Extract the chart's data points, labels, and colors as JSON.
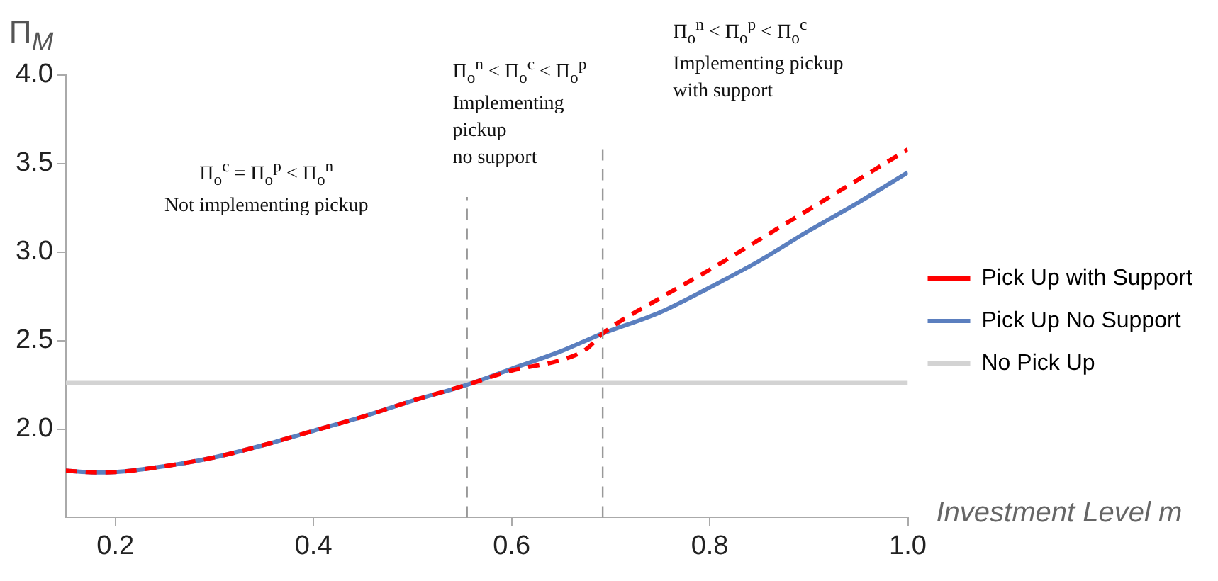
{
  "chart_data": {
    "type": "line",
    "ylabel": "Π$_{M}$",
    "xlabel": "Investment Level m",
    "annotations": [
      "Π$_{o}$$^{c}$ = Π$_{o}$$^{p}$ < Π$_{o}$$^{n}$\nNot implementing pickup",
      "Π$_{o}$$^{n}$ < Π$_{o}$$^{c}$ < Π$_{o}$$^{p}$\nImplementing\npickup\nno support",
      "Π$_{o}$$^{n}$ < Π$_{o}$$^{p}$ < Π$_{o}$$^{c}$\nImplementing pickup\nwith support"
    ],
    "x": [
      0.15,
      0.18,
      0.2,
      0.25,
      0.3,
      0.35,
      0.4,
      0.45,
      0.5,
      0.555,
      0.6,
      0.65,
      0.675,
      0.692,
      0.75,
      0.8,
      0.85,
      0.9,
      0.95,
      1.0
    ],
    "series": [
      {
        "name": "Pick Up with Support",
        "color": "#ff0000",
        "line_style": "dashed",
        "values": [
          1.765,
          1.755,
          1.757,
          1.79,
          1.84,
          1.91,
          1.99,
          2.07,
          2.16,
          2.25,
          2.33,
          2.39,
          2.45,
          2.54,
          2.74,
          2.9,
          3.07,
          3.24,
          3.41,
          3.58
        ]
      },
      {
        "name": "Pick Up No Support",
        "color": "#5b7fbf",
        "line_style": "solid",
        "values": [
          1.765,
          1.755,
          1.757,
          1.79,
          1.84,
          1.91,
          1.99,
          2.07,
          2.16,
          2.25,
          2.34,
          2.44,
          2.5,
          2.54,
          2.66,
          2.8,
          2.95,
          3.12,
          3.28,
          3.45
        ]
      },
      {
        "name": "No Pick Up",
        "color": "#d3d3d3",
        "line_style": "solid",
        "x": [
          0.15,
          1.0
        ],
        "values": [
          2.26,
          2.26
        ]
      }
    ],
    "ref_lines": [
      {
        "axis": "x",
        "value": 0.555,
        "color": "#999999",
        "line_style": "dashed"
      },
      {
        "axis": "x",
        "value": 0.692,
        "color": "#999999",
        "line_style": "dashed"
      }
    ],
    "xlim": [
      0.15,
      1.0
    ],
    "ylim": [
      1.5,
      4.0
    ],
    "xticks": [
      0.2,
      0.4,
      0.6,
      0.8,
      {
        "value": 1.0,
        "label": "1.0"
      }
    ],
    "yticks": [
      {
        "value": 2.0,
        "label": "2.0"
      },
      2.5,
      {
        "value": 3.0,
        "label": "3.0"
      },
      3.5,
      {
        "value": 4.0,
        "label": "4.0"
      }
    ],
    "grid": false,
    "legend": "right",
    "marker": "none"
  }
}
